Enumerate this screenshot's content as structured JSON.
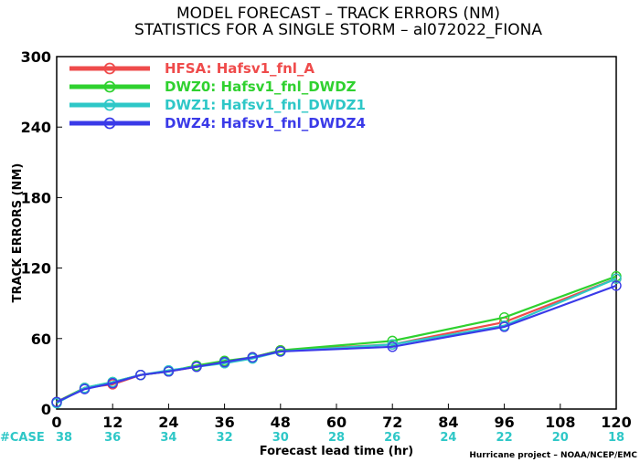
{
  "chart_data": {
    "type": "line",
    "title": "MODEL FORECAST – TRACK ERRORS (NM)",
    "subtitle": "STATISTICS FOR A SINGLE STORM – al072022_FIONA",
    "xlabel": "Forecast lead time (hr)",
    "ylabel": "TRACK ERRORS (NM)",
    "xlim": [
      0,
      120
    ],
    "ylim": [
      0,
      300
    ],
    "x_ticks": [
      "0",
      "12",
      "24",
      "36",
      "48",
      "60",
      "72",
      "84",
      "96",
      "108",
      "120"
    ],
    "y_ticks": [
      "0",
      "60",
      "120",
      "180",
      "240",
      "300"
    ],
    "y_tick_values": [
      0,
      60,
      120,
      180,
      240,
      300
    ],
    "case_label": "#CASE",
    "case_counts": [
      "38",
      "36",
      "34",
      "32",
      "30",
      "28",
      "26",
      "24",
      "22",
      "20",
      "18"
    ],
    "credit": "Hurricane project – NOAA/NCEP/EMC",
    "legend_placement": "top-left",
    "grid": false,
    "x": [
      0,
      6,
      12,
      18,
      24,
      30,
      36,
      42,
      48,
      72,
      96,
      120
    ],
    "series": [
      {
        "name": "HFSA: Hafsv1_fnl_A",
        "color": "#ef4b4b",
        "values": [
          6,
          18,
          21,
          29,
          32,
          36,
          40,
          44,
          50,
          55,
          74,
          111
        ]
      },
      {
        "name": "DWZ0: Hafsv1_fnl_DWDZ",
        "color": "#2fd12f",
        "values": [
          6,
          18,
          23,
          29,
          32,
          37,
          41,
          44,
          50,
          58,
          78,
          113
        ]
      },
      {
        "name": "DWZ1: Hafsv1_fnl_DWDZ1",
        "color": "#2ec7c7",
        "values": [
          5,
          18,
          23,
          29,
          33,
          36,
          39,
          43,
          49,
          55,
          71,
          111
        ]
      },
      {
        "name": "DWZ4: Hafsv1_fnl_DWDZ4",
        "color": "#3a3ae8",
        "values": [
          6,
          17,
          22,
          29,
          32,
          36,
          40,
          44,
          49,
          53,
          70,
          105
        ]
      }
    ],
    "case_color": "#2ec7c7"
  }
}
